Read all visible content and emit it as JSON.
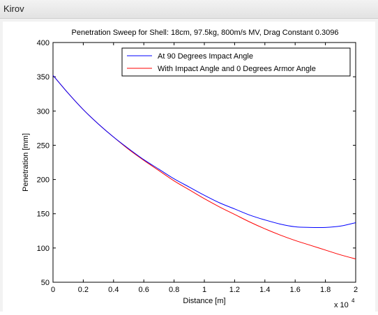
{
  "window": {
    "title": "Kirov"
  },
  "chart_data": {
    "type": "line",
    "title": "Penetration Sweep for Shell: 18cm, 97.5kg, 800m/s MV, Drag Constant 0.3096",
    "xlabel": "Distance [m]",
    "ylabel": "Penetration [mm]",
    "x_multiplier_label": "x 10",
    "x_multiplier_exponent": "4",
    "xlim": [
      0,
      20000
    ],
    "ylim": [
      50,
      400
    ],
    "xticks": [
      0,
      2000,
      4000,
      6000,
      8000,
      10000,
      12000,
      14000,
      16000,
      18000,
      20000
    ],
    "xtick_labels": [
      "0",
      "0.2",
      "0.4",
      "0.6",
      "0.8",
      "1",
      "1.2",
      "1.4",
      "1.6",
      "1.8",
      "2"
    ],
    "yticks": [
      50,
      100,
      150,
      200,
      250,
      300,
      350,
      400
    ],
    "ytick_labels": [
      "50",
      "100",
      "150",
      "200",
      "250",
      "300",
      "350",
      "400"
    ],
    "grid": false,
    "legend_position": "top-right",
    "x": [
      0,
      1000,
      2000,
      3000,
      4000,
      5000,
      6000,
      7000,
      8000,
      9000,
      10000,
      11000,
      12000,
      13000,
      14000,
      15000,
      16000,
      17000,
      18000,
      19000,
      20000
    ],
    "series": [
      {
        "name": "At 90 Degrees Impact Angle",
        "color": "#0000ff",
        "values": [
          352,
          326,
          302,
          281,
          262,
          245,
          229,
          215,
          201,
          189,
          177,
          166,
          157,
          148,
          141,
          135,
          131,
          130,
          130,
          132,
          137
        ]
      },
      {
        "name": "With Impact Angle and 0 Degrees Armor Angle",
        "color": "#ff0000",
        "values": [
          352,
          326,
          302,
          281,
          262,
          244,
          228,
          213,
          198,
          185,
          172,
          160,
          149,
          138,
          128,
          119,
          111,
          104,
          97,
          90,
          84
        ]
      }
    ]
  }
}
